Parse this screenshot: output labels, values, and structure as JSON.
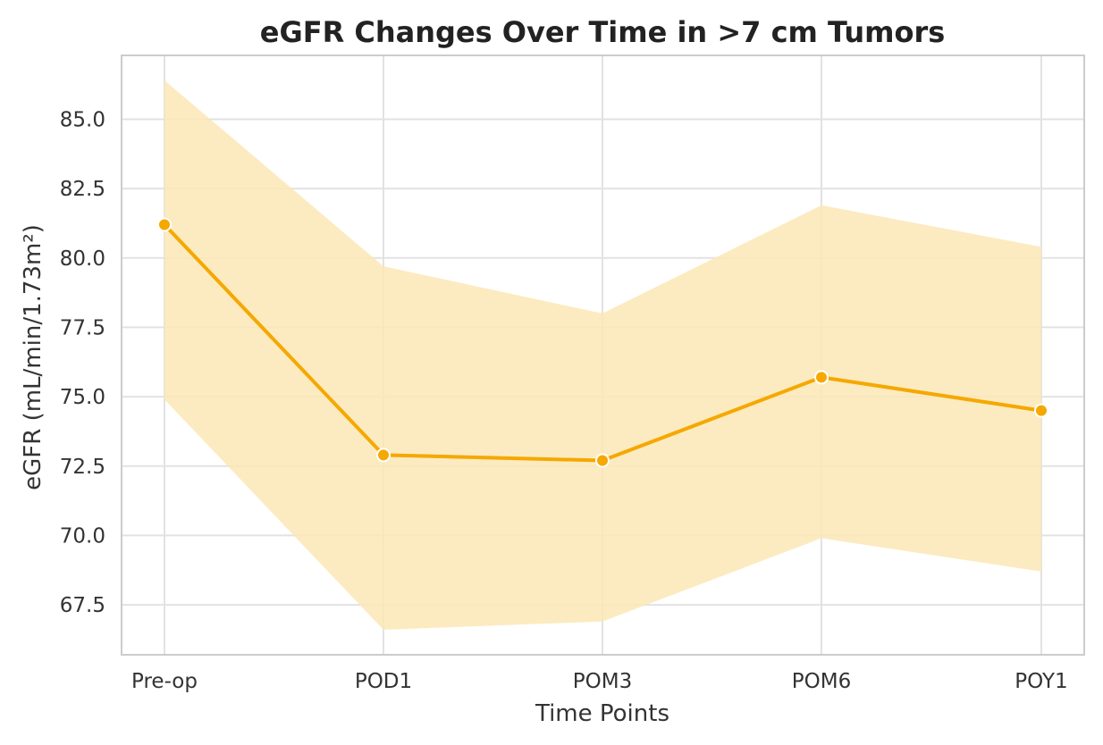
{
  "chart_data": {
    "type": "line",
    "title": "eGFR Changes Over Time in >7 cm Tumors",
    "xlabel": "Time Points",
    "ylabel": "eGFR (mL/min/1.73m²)",
    "categories": [
      "Pre-op",
      "POD1",
      "POM3",
      "POM6",
      "POY1"
    ],
    "series": [
      {
        "values": [
          81.2,
          72.9,
          72.7,
          75.7,
          74.5
        ],
        "ci_lower": [
          74.9,
          66.6,
          66.9,
          69.9,
          68.7
        ],
        "ci_upper": [
          86.4,
          79.7,
          78.0,
          81.9,
          80.4
        ]
      }
    ],
    "yticks": [
      "67.5",
      "70.0",
      "72.5",
      "75.0",
      "77.5",
      "80.0",
      "82.5",
      "85.0"
    ],
    "ylim": [
      65.7,
      87.3
    ],
    "grid": true,
    "line_color": "#f5a800",
    "band_color": "#fbe7b5"
  }
}
